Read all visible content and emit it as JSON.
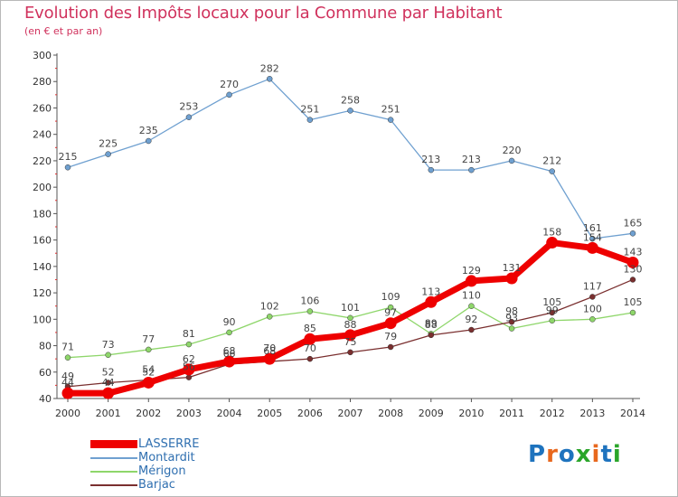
{
  "title": "Evolution des Impôts locaux pour la Commune par Habitant",
  "subtitle": "(en € et par an)",
  "logo": {
    "text": "Proxiti",
    "colors": [
      "#1e73be",
      "#e8681e",
      "#1e73be",
      "#2aa52a",
      "#e8681e",
      "#1e73be",
      "#2aa52a"
    ]
  },
  "chart_data": {
    "type": "line",
    "x": [
      2000,
      2001,
      2002,
      2003,
      2004,
      2005,
      2006,
      2007,
      2008,
      2009,
      2010,
      2011,
      2012,
      2013,
      2014
    ],
    "ylim": [
      40,
      300
    ],
    "yticks": [
      40,
      60,
      80,
      100,
      120,
      140,
      160,
      180,
      200,
      220,
      240,
      260,
      280,
      300
    ],
    "grid": false,
    "legend_position": "bottom-left",
    "series": [
      {
        "name": "LASSERRE",
        "color": "#ee0000",
        "values": [
          44,
          44,
          52,
          62,
          68,
          70,
          85,
          88,
          97,
          113,
          129,
          131,
          158,
          154,
          143
        ]
      },
      {
        "name": "Montardit",
        "color": "#6fa0d0",
        "values": [
          215,
          225,
          235,
          253,
          270,
          282,
          251,
          258,
          251,
          213,
          213,
          220,
          212,
          161,
          165
        ]
      },
      {
        "name": "Mérigon",
        "color": "#8ed66a",
        "values": [
          71,
          73,
          77,
          81,
          90,
          102,
          106,
          101,
          109,
          89,
          110,
          93,
          99,
          100,
          105
        ]
      },
      {
        "name": "Barjac",
        "color": "#7a2f2f",
        "values": [
          49,
          52,
          54,
          56,
          66,
          68,
          70,
          75,
          79,
          88,
          92,
          98,
          105,
          117,
          130
        ]
      }
    ]
  }
}
